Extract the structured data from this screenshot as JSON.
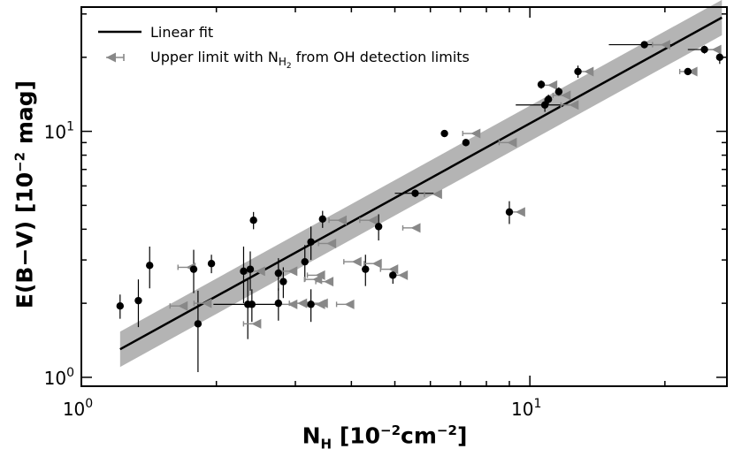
{
  "chart_data": {
    "type": "scatter",
    "title": "",
    "xlabel": {
      "main": "N",
      "sub": "H",
      "rest": " [10",
      "exp1": "−2",
      "rest2": "cm",
      "exp2": "−2",
      "close": "]"
    },
    "ylabel": {
      "main": "E(B−V) [10",
      "exp": "−2",
      "rest": " mag]"
    },
    "x_scale": "log",
    "y_scale": "log",
    "xlim": [
      1.0,
      27.5
    ],
    "ylim": [
      0.92,
      32.0
    ],
    "grid": false,
    "legend_position": "top-left",
    "x_ticks": [
      {
        "value": 1,
        "base": "10",
        "exp": "0"
      },
      {
        "value": 10,
        "base": "10",
        "exp": "1"
      }
    ],
    "y_ticks": [
      {
        "value": 1,
        "base": "10",
        "exp": "0"
      },
      {
        "value": 10,
        "base": "10",
        "exp": "1"
      }
    ],
    "legend": [
      {
        "name": "Linear fit",
        "marker": "line"
      },
      {
        "name": "Upper limit with N",
        "sub": "H",
        "subsub": "2",
        "rest": " from OH detection limits",
        "marker": "left-triangle"
      }
    ],
    "fit_line": {
      "x": [
        1.22,
        26.8
      ],
      "y": [
        1.3,
        29.0
      ],
      "band_factor": 1.18
    },
    "series": [
      {
        "name": "Linear fit",
        "marker": "black-circle",
        "points": [
          {
            "x": 1.22,
            "y": 1.95,
            "yerr": 0.22
          },
          {
            "x": 1.34,
            "y": 2.05,
            "yerr": 0.45
          },
          {
            "x": 1.42,
            "y": 2.85,
            "yerr": 0.55
          },
          {
            "x": 1.78,
            "y": 2.75,
            "yerr": 0.55
          },
          {
            "x": 1.82,
            "y": 1.65,
            "yerr": 0.6
          },
          {
            "x": 1.95,
            "y": 2.9,
            "yerr": 0.25
          },
          {
            "x": 2.3,
            "y": 2.7,
            "yerr": 0.7
          },
          {
            "x": 2.35,
            "y": 1.98,
            "yerr": 0.55,
            "xerr": 0.38
          },
          {
            "x": 2.38,
            "y": 2.75,
            "yerr": 0.5
          },
          {
            "x": 2.4,
            "y": 1.98,
            "yerr": 0.3
          },
          {
            "x": 2.42,
            "y": 4.35,
            "yerr": 0.35
          },
          {
            "x": 2.75,
            "y": 2.65,
            "yerr": 0.4
          },
          {
            "x": 2.75,
            "y": 2.0,
            "yerr": 0.3
          },
          {
            "x": 2.82,
            "y": 2.45,
            "yerr": 0.35
          },
          {
            "x": 3.15,
            "y": 2.95,
            "yerr": 0.5
          },
          {
            "x": 3.25,
            "y": 3.55,
            "yerr": 0.55
          },
          {
            "x": 3.25,
            "y": 1.98,
            "yerr": 0.3
          },
          {
            "x": 3.45,
            "y": 4.4,
            "yerr": 0.35
          },
          {
            "x": 4.3,
            "y": 2.75,
            "yerr": 0.4
          },
          {
            "x": 4.6,
            "y": 4.1,
            "yerr": 0.5
          },
          {
            "x": 4.95,
            "y": 2.6,
            "yerr": 0.2
          },
          {
            "x": 5.55,
            "y": 5.6,
            "yerr": 0.2,
            "xerr": 0.55
          },
          {
            "x": 6.45,
            "y": 9.8,
            "yerr": 0.2
          },
          {
            "x": 7.2,
            "y": 9.0,
            "yerr": 0.3
          },
          {
            "x": 9.0,
            "y": 4.7,
            "yerr": 0.5
          },
          {
            "x": 10.6,
            "y": 15.5,
            "yerr": 0.6
          },
          {
            "x": 10.8,
            "y": 12.8,
            "yerr": 0.8,
            "xerr": 1.5
          },
          {
            "x": 11.0,
            "y": 13.5,
            "yerr": 0.6
          },
          {
            "x": 11.6,
            "y": 14.5,
            "yerr": 0.6
          },
          {
            "x": 12.8,
            "y": 17.5,
            "yerr": 1.0
          },
          {
            "x": 18.0,
            "y": 22.5,
            "yerr": 0.5,
            "xerr": 3.0
          },
          {
            "x": 22.5,
            "y": 17.5,
            "yerr": 0.5
          },
          {
            "x": 24.5,
            "y": 21.5,
            "yerr": 0.8,
            "xerr": 2.0
          },
          {
            "x": 26.5,
            "y": 20.0,
            "yerr": 1.2
          }
        ]
      },
      {
        "name": "Upper limit with NH2 from OH detection limits",
        "marker": "gray-left-triangle",
        "points": [
          {
            "x": 1.68,
            "y": 1.95
          },
          {
            "x": 1.75,
            "y": 2.8
          },
          {
            "x": 1.9,
            "y": 2.0
          },
          {
            "x": 2.45,
            "y": 1.65
          },
          {
            "x": 2.5,
            "y": 2.7
          },
          {
            "x": 2.95,
            "y": 2.7
          },
          {
            "x": 2.95,
            "y": 1.98
          },
          {
            "x": 3.1,
            "y": 2.0
          },
          {
            "x": 3.35,
            "y": 2.5
          },
          {
            "x": 3.4,
            "y": 1.98
          },
          {
            "x": 3.4,
            "y": 2.6
          },
          {
            "x": 3.45,
            "y": 2.0
          },
          {
            "x": 3.55,
            "y": 2.45
          },
          {
            "x": 3.6,
            "y": 3.5
          },
          {
            "x": 3.8,
            "y": 4.35
          },
          {
            "x": 3.95,
            "y": 1.98
          },
          {
            "x": 4.1,
            "y": 2.95
          },
          {
            "x": 4.45,
            "y": 4.35
          },
          {
            "x": 4.55,
            "y": 2.9
          },
          {
            "x": 4.95,
            "y": 2.75
          },
          {
            "x": 5.2,
            "y": 2.6
          },
          {
            "x": 5.55,
            "y": 4.05
          },
          {
            "x": 6.2,
            "y": 5.55
          },
          {
            "x": 7.55,
            "y": 9.8
          },
          {
            "x": 9.1,
            "y": 9.0
          },
          {
            "x": 9.5,
            "y": 4.7
          },
          {
            "x": 11.2,
            "y": 15.4
          },
          {
            "x": 12.0,
            "y": 14.0
          },
          {
            "x": 12.5,
            "y": 12.8
          },
          {
            "x": 13.5,
            "y": 17.5
          },
          {
            "x": 20.0,
            "y": 22.5
          },
          {
            "x": 23.0,
            "y": 17.5
          },
          {
            "x": 26.0,
            "y": 21.5
          }
        ]
      }
    ]
  }
}
